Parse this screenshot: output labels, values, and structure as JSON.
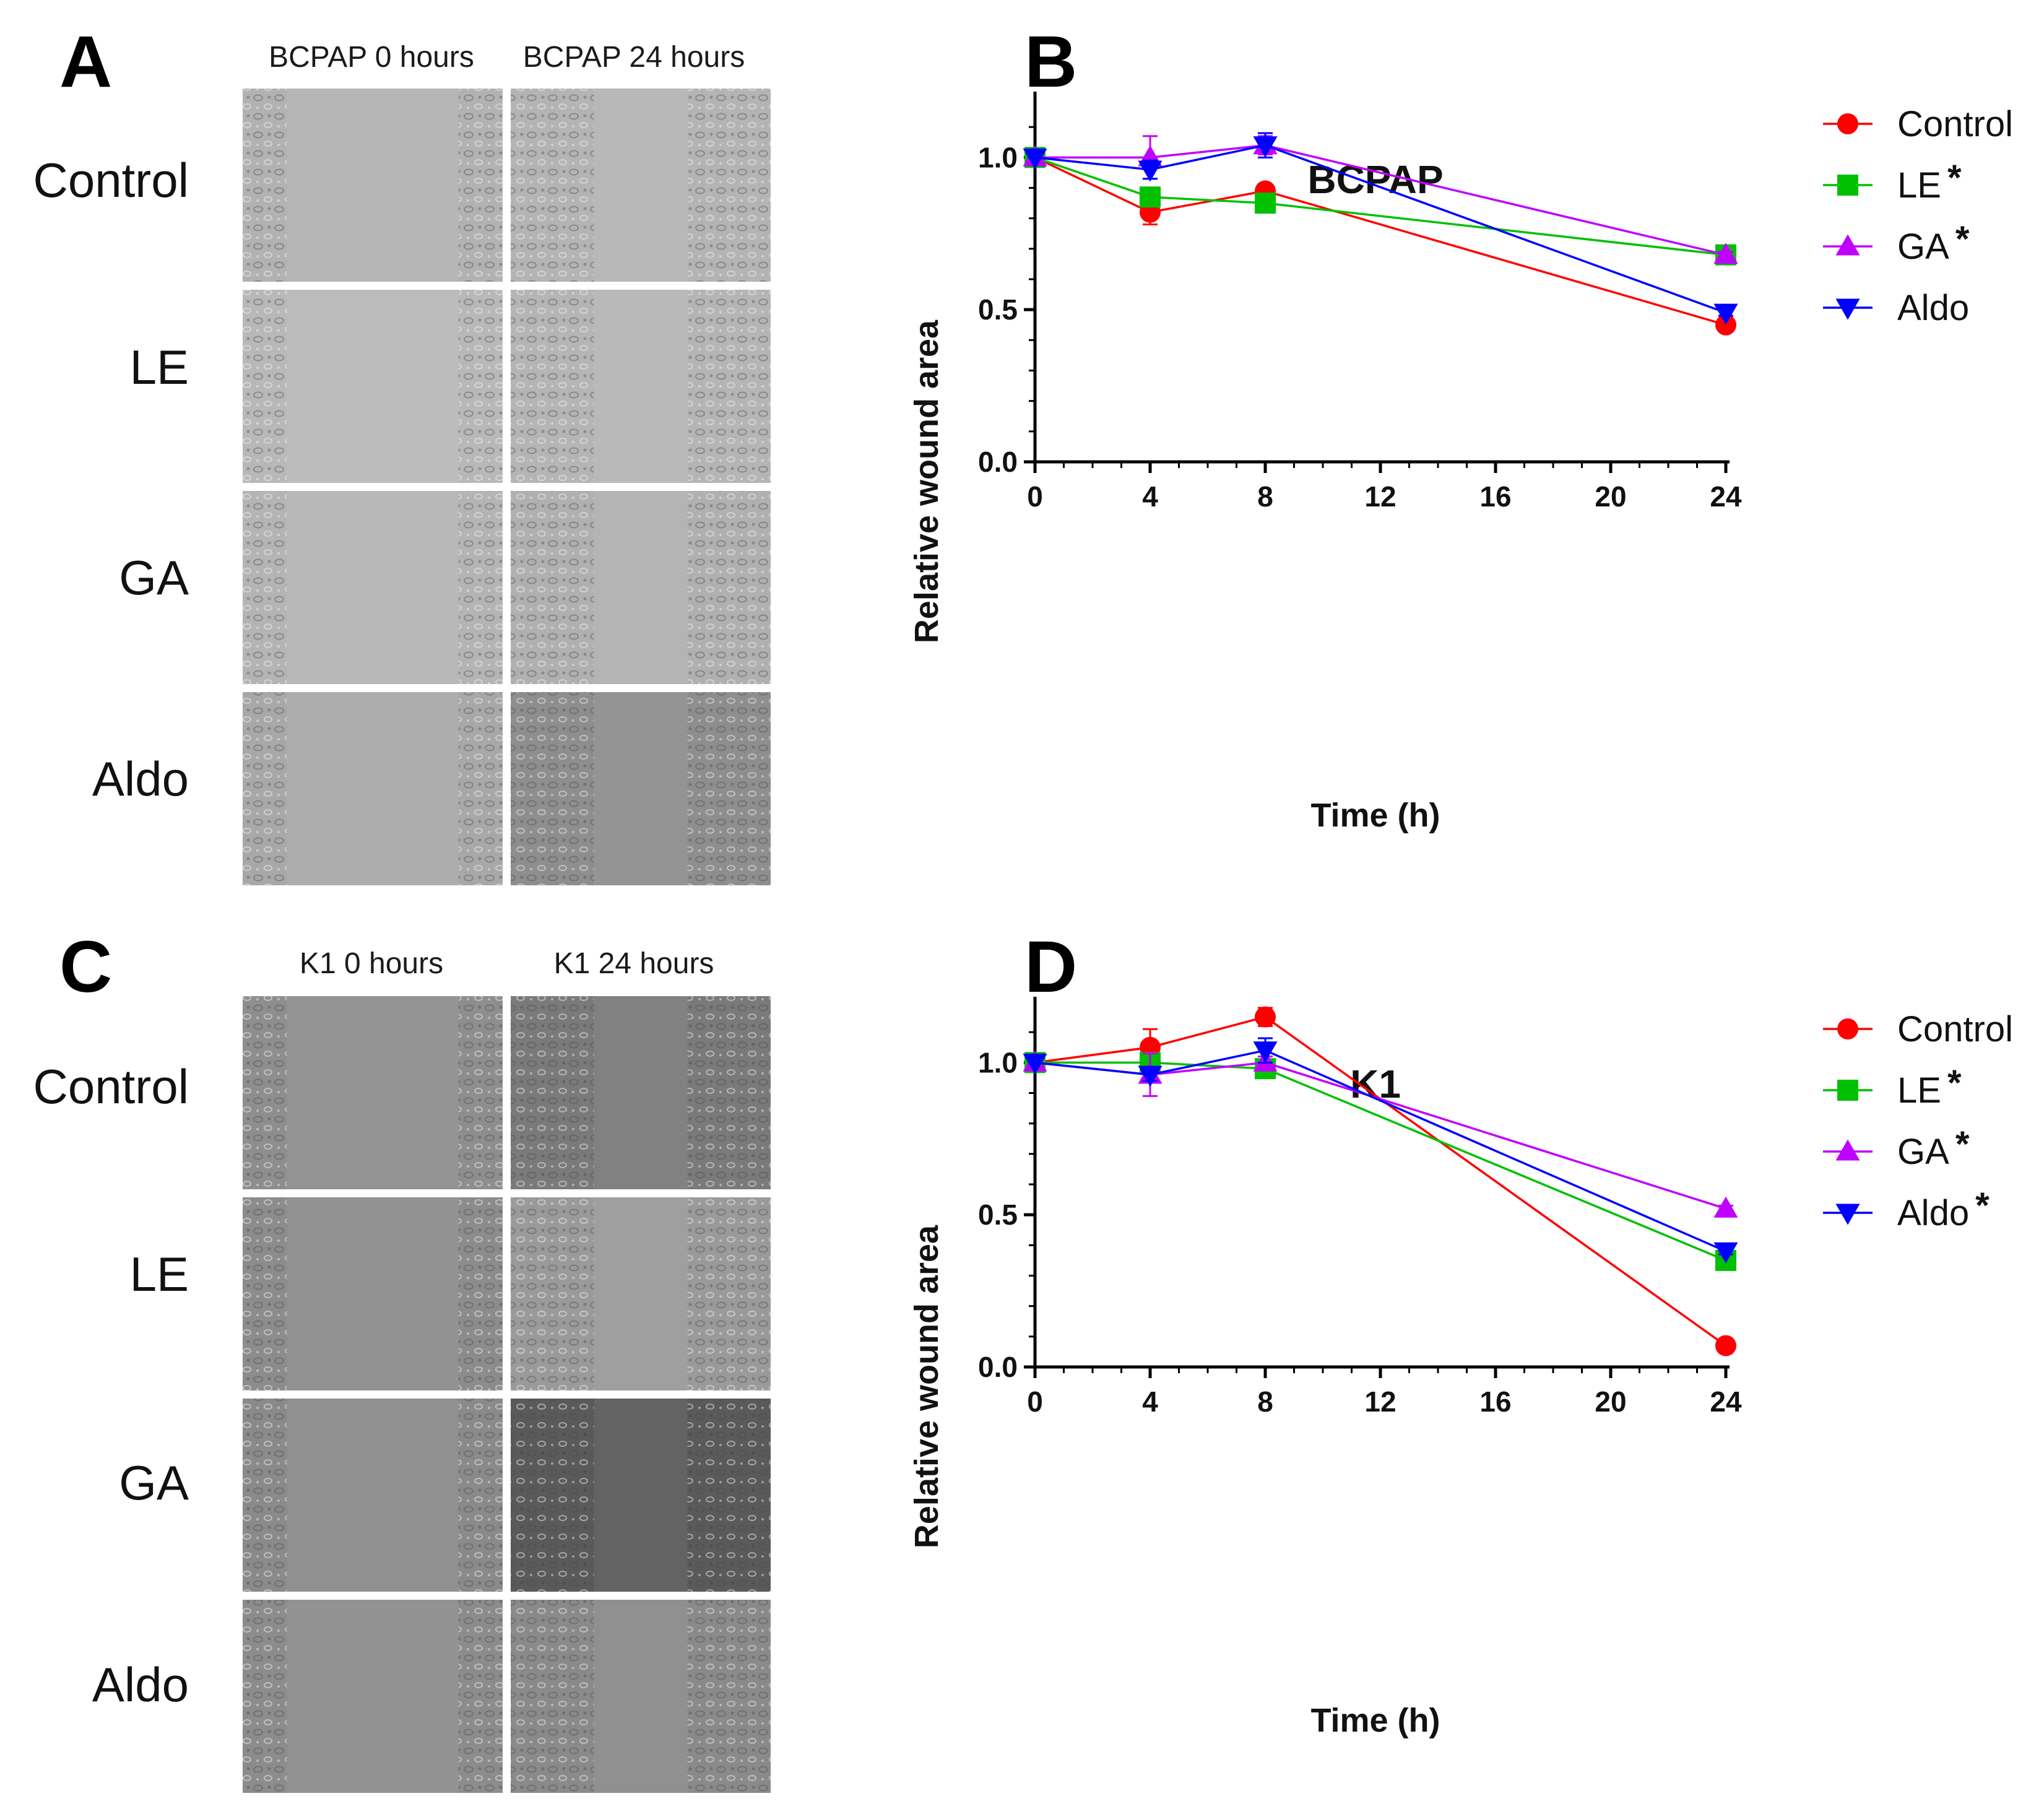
{
  "panels": {
    "A": {
      "letter": "A",
      "col_headers": [
        "BCPAP 0 hours",
        "BCPAP 24 hours"
      ],
      "row_labels": [
        "Control",
        "LE",
        "GA",
        "Aldo"
      ],
      "tone": [
        [
          "#b2b2b2",
          "#b4b4b4"
        ],
        [
          "#b8b8b8",
          "#b5b5b5"
        ],
        [
          "#b4b4b4",
          "#b0b0b0"
        ],
        [
          "#a8a8a8",
          "#8e8e8e"
        ]
      ]
    },
    "B": {
      "letter": "B"
    },
    "C": {
      "letter": "C",
      "col_headers": [
        "K1 0 hours",
        "K1 24 hours"
      ],
      "row_labels": [
        "Control",
        "LE",
        "GA",
        "Aldo"
      ],
      "tone": [
        [
          "#8e8e8e",
          "#7a7a7a"
        ],
        [
          "#8c8c8c",
          "#9a9a9a"
        ],
        [
          "#8a8a8a",
          "#5a5a5a"
        ],
        [
          "#8c8c8c",
          "#8a8a8a"
        ]
      ]
    },
    "D": {
      "letter": "D"
    }
  },
  "colors": {
    "Control": "#ff0000",
    "LE": "#00c000",
    "GA": "#c000ff",
    "Aldo": "#0000ff"
  },
  "chart_data": [
    {
      "panel": "B",
      "type": "line",
      "title": "BCPAP",
      "xlabel": "Time (h)",
      "ylabel": "Relative wound area",
      "x": [
        0,
        4,
        8,
        24
      ],
      "xlim": [
        0,
        24
      ],
      "xticks": [
        0,
        4,
        8,
        12,
        16,
        20,
        24
      ],
      "ylim": [
        0,
        1.2
      ],
      "yticks": [
        "0.0",
        "0.5",
        "1.0"
      ],
      "series": [
        {
          "name": "Control",
          "label": "Control",
          "star": "",
          "marker": "circle",
          "values": [
            1.0,
            0.82,
            0.89,
            0.45
          ],
          "err": [
            0,
            0.04,
            0.02,
            0.01
          ]
        },
        {
          "name": "LE",
          "label": "LE",
          "star": "*",
          "marker": "square",
          "values": [
            1.0,
            0.87,
            0.85,
            0.68
          ],
          "err": [
            0,
            0.03,
            0.02,
            0.01
          ]
        },
        {
          "name": "GA",
          "label": "GA",
          "star": "*",
          "marker": "triangle-up",
          "values": [
            1.0,
            1.0,
            1.04,
            0.68
          ],
          "err": [
            0,
            0.07,
            0.03,
            0.01
          ]
        },
        {
          "name": "Aldo",
          "label": "Aldo",
          "star": "",
          "marker": "triangle-down",
          "values": [
            1.0,
            0.96,
            1.04,
            0.49
          ],
          "err": [
            0,
            0.03,
            0.04,
            0.01
          ]
        }
      ]
    },
    {
      "panel": "D",
      "type": "line",
      "title": "K1",
      "xlabel": "Time (h)",
      "ylabel": "Relative wound area",
      "x": [
        0,
        4,
        8,
        24
      ],
      "xlim": [
        0,
        24
      ],
      "xticks": [
        0,
        4,
        8,
        12,
        16,
        20,
        24
      ],
      "ylim": [
        0,
        1.2
      ],
      "yticks": [
        "0.0",
        "0.5",
        "1.0"
      ],
      "series": [
        {
          "name": "Control",
          "label": "Control",
          "star": "",
          "marker": "circle",
          "values": [
            1.0,
            1.05,
            1.15,
            0.07
          ],
          "err": [
            0,
            0.06,
            0.03,
            0.01
          ]
        },
        {
          "name": "LE",
          "label": "LE",
          "star": "*",
          "marker": "square",
          "values": [
            1.0,
            1.0,
            0.98,
            0.35
          ],
          "err": [
            0,
            0.02,
            0.02,
            0.01
          ]
        },
        {
          "name": "GA",
          "label": "GA",
          "star": "*",
          "marker": "triangle-up",
          "values": [
            1.0,
            0.96,
            1.0,
            0.52
          ],
          "err": [
            0,
            0.07,
            0.02,
            0.01
          ]
        },
        {
          "name": "Aldo",
          "label": "Aldo",
          "star": "*",
          "marker": "triangle-down",
          "values": [
            1.0,
            0.96,
            1.04,
            0.38
          ],
          "err": [
            0,
            0.02,
            0.04,
            0.01
          ]
        }
      ]
    }
  ]
}
